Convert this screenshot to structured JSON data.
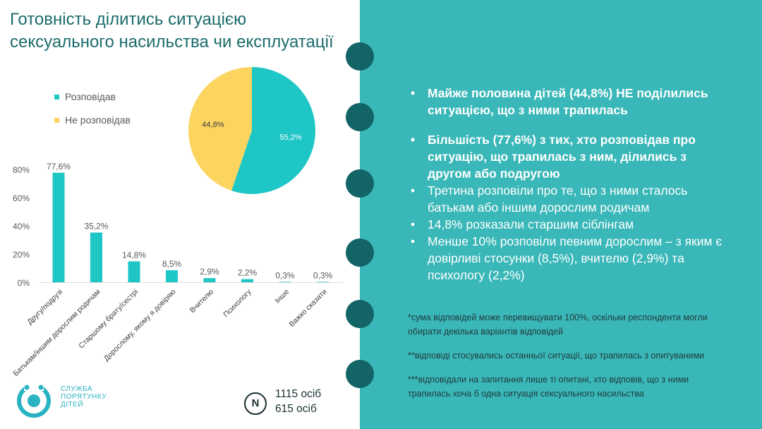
{
  "slide": {
    "title_lines": [
      "Готовність ділитись ситуацією",
      "сексуального насильства чи експлуатації"
    ],
    "bullets": [
      "Майже половина дітей (44,8%) НЕ поділились ситуацією, що з ними трапилась",
      "Більшість (77,6%) з тих, хто розповідав про ситуацію, що трапилась з ним, ділились з другом або подругою",
      "Третина розповіли про те, що з ними сталось батькам або іншим дорослим родичам",
      "14,8% розказали старшим сіблінгам",
      "Менше 10% розповіли певним дорослим – з яким є довірливі стосунки (8,5%), вчителю (2,9%) та психологу (2,2%)"
    ],
    "notes": [
      "*сума відповідей може перевищувати 100%, оскільки респонденти могли обирати декілька варіантів відповідей",
      "**відповіді стосувались останньої ситуації, що трапилась з опитуваними",
      "***відповідали на запитання лише ті опитані, хто відповів, що з ними трапилась хоча б одна ситуація сексуального насильства"
    ],
    "logo_lines": [
      "СЛУЖБА",
      "ПОРЯТУНКУ",
      "ДІТЕЙ"
    ],
    "n_label": "N",
    "n_values": [
      "1115 осіб",
      "615 осіб"
    ],
    "colors": {
      "right_bg": "#3ab7b8",
      "title": "#1b6b6b",
      "ring": "#126466",
      "bar": "#1fc6c6",
      "pie_told": "#1fc6c6",
      "pie_not_told": "#fcd561",
      "logo": "#2ab3c3"
    }
  },
  "chart_data": [
    {
      "type": "pie",
      "labels": [
        "Розповідав",
        "Не розповідав"
      ],
      "values": [
        55.2,
        44.8
      ],
      "data_labels": [
        "55,2%",
        "44,8%"
      ],
      "colors": [
        "#1fc6c6",
        "#fcd561"
      ],
      "legend": "left"
    },
    {
      "type": "bar",
      "categories": [
        "Другу/подрузі",
        "Батькам/іншим дорослим родичам",
        "Старшому брату/сестрі",
        "Дорослому, якому я довіряю",
        "Вчителю",
        "Психологу",
        "Інше",
        "Важко сказати"
      ],
      "values": [
        77.6,
        35.2,
        14.8,
        8.5,
        2.9,
        2.2,
        0.3,
        0.3
      ],
      "data_labels": [
        "77,6%",
        "35,2%",
        "14,8%",
        "8,5%",
        "2,9%",
        "2,2%",
        "0,3%",
        "0,3%"
      ],
      "y_ticks": [
        "0%",
        "20%",
        "40%",
        "60%",
        "80%"
      ],
      "ylim": [
        0,
        80
      ],
      "grid": false
    }
  ]
}
